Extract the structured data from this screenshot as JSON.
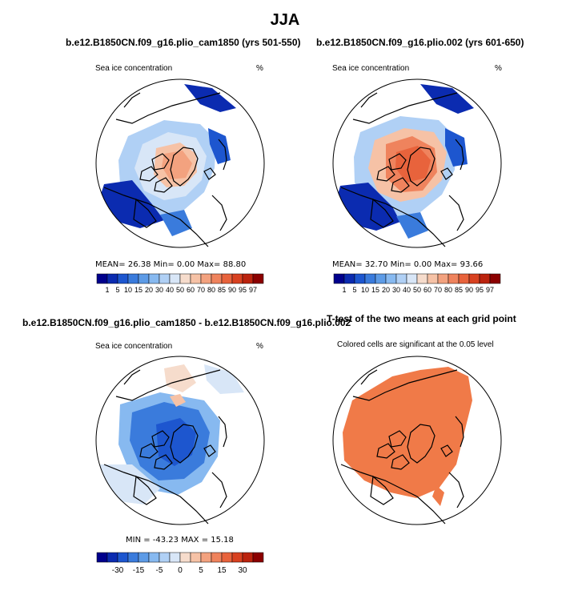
{
  "figure": {
    "season_title": "JJA",
    "palette_full": [
      "#00008c",
      "#0b2bb0",
      "#1d56cf",
      "#3a7bdc",
      "#5d9be6",
      "#87b9f0",
      "#b0d0f5",
      "#d8e6f7",
      "#f6dccc",
      "#f6c2a6",
      "#f3a27f",
      "#ef835d",
      "#e8633c",
      "#d84120",
      "#bb230e",
      "#8b0000"
    ],
    "ocean_color": "#ffffff",
    "land_outline_color": "#000000",
    "significance_color": "#f07a48"
  },
  "panels": [
    {
      "id": "top-left",
      "title": "b.e12.B1850CN.f09_g16.plio_cam1850 (yrs 501-550)",
      "variable_label": "Sea ice concentration",
      "units": "%",
      "stats_line": "MEAN=   26.38   Min=     0.00   Max=   88.80",
      "colorbar_labels": [
        "1",
        "5",
        "10",
        "15",
        "20",
        "30",
        "40",
        "50",
        "60",
        "70",
        "80",
        "85",
        "90",
        "95",
        "97"
      ]
    },
    {
      "id": "top-right",
      "title": "b.e12.B1850CN.f09_g16.plio.002 (yrs 601-650)",
      "variable_label": "Sea ice concentration",
      "units": "%",
      "stats_line": "MEAN=   32.70   Min=     0.00   Max=   93.66",
      "colorbar_labels": [
        "1",
        "5",
        "10",
        "15",
        "20",
        "30",
        "40",
        "50",
        "60",
        "70",
        "80",
        "85",
        "90",
        "95",
        "97"
      ]
    },
    {
      "id": "bottom-left",
      "title": "b.e12.B1850CN.f09_g16.plio_cam1850 - b.e12.B1850CN.f09_g16.plio.002",
      "variable_label": "Sea ice concentration",
      "units": "%",
      "stats_line": "MIN = -43.23 MAX =  15.18",
      "colorbar_labels": [
        "-30",
        "-15",
        "-5",
        "0",
        "5",
        "15",
        "30"
      ]
    },
    {
      "id": "bottom-right",
      "title": "T-test of the two means at each grid point",
      "subtitle": "Colored cells are significant at the 0.05 level"
    }
  ],
  "chart_data": [
    {
      "type": "heatmap",
      "projection": "north-polar-stereographic",
      "title": "b.e12.B1850CN.f09_g16.plio_cam1850 (yrs 501-550)",
      "variable": "Sea ice concentration",
      "units": "%",
      "color_levels": [
        1,
        5,
        10,
        15,
        20,
        30,
        40,
        50,
        60,
        70,
        80,
        85,
        90,
        95,
        97
      ],
      "mean": 26.38,
      "min": 0.0,
      "max": 88.8
    },
    {
      "type": "heatmap",
      "projection": "north-polar-stereographic",
      "title": "b.e12.B1850CN.f09_g16.plio.002 (yrs 601-650)",
      "variable": "Sea ice concentration",
      "units": "%",
      "color_levels": [
        1,
        5,
        10,
        15,
        20,
        30,
        40,
        50,
        60,
        70,
        80,
        85,
        90,
        95,
        97
      ],
      "mean": 32.7,
      "min": 0.0,
      "max": 93.66
    },
    {
      "type": "heatmap",
      "projection": "north-polar-stereographic",
      "title": "b.e12.B1850CN.f09_g16.plio_cam1850 - b.e12.B1850CN.f09_g16.plio.002",
      "variable": "Sea ice concentration difference",
      "units": "%",
      "color_levels": [
        -30,
        -15,
        -5,
        0,
        5,
        15,
        30
      ],
      "min": -43.23,
      "max": 15.18
    },
    {
      "type": "heatmap",
      "projection": "north-polar-stereographic",
      "title": "T-test of the two means at each grid point",
      "significance_level": 0.05,
      "note": "Colored cells are significant at the 0.05 level"
    }
  ]
}
